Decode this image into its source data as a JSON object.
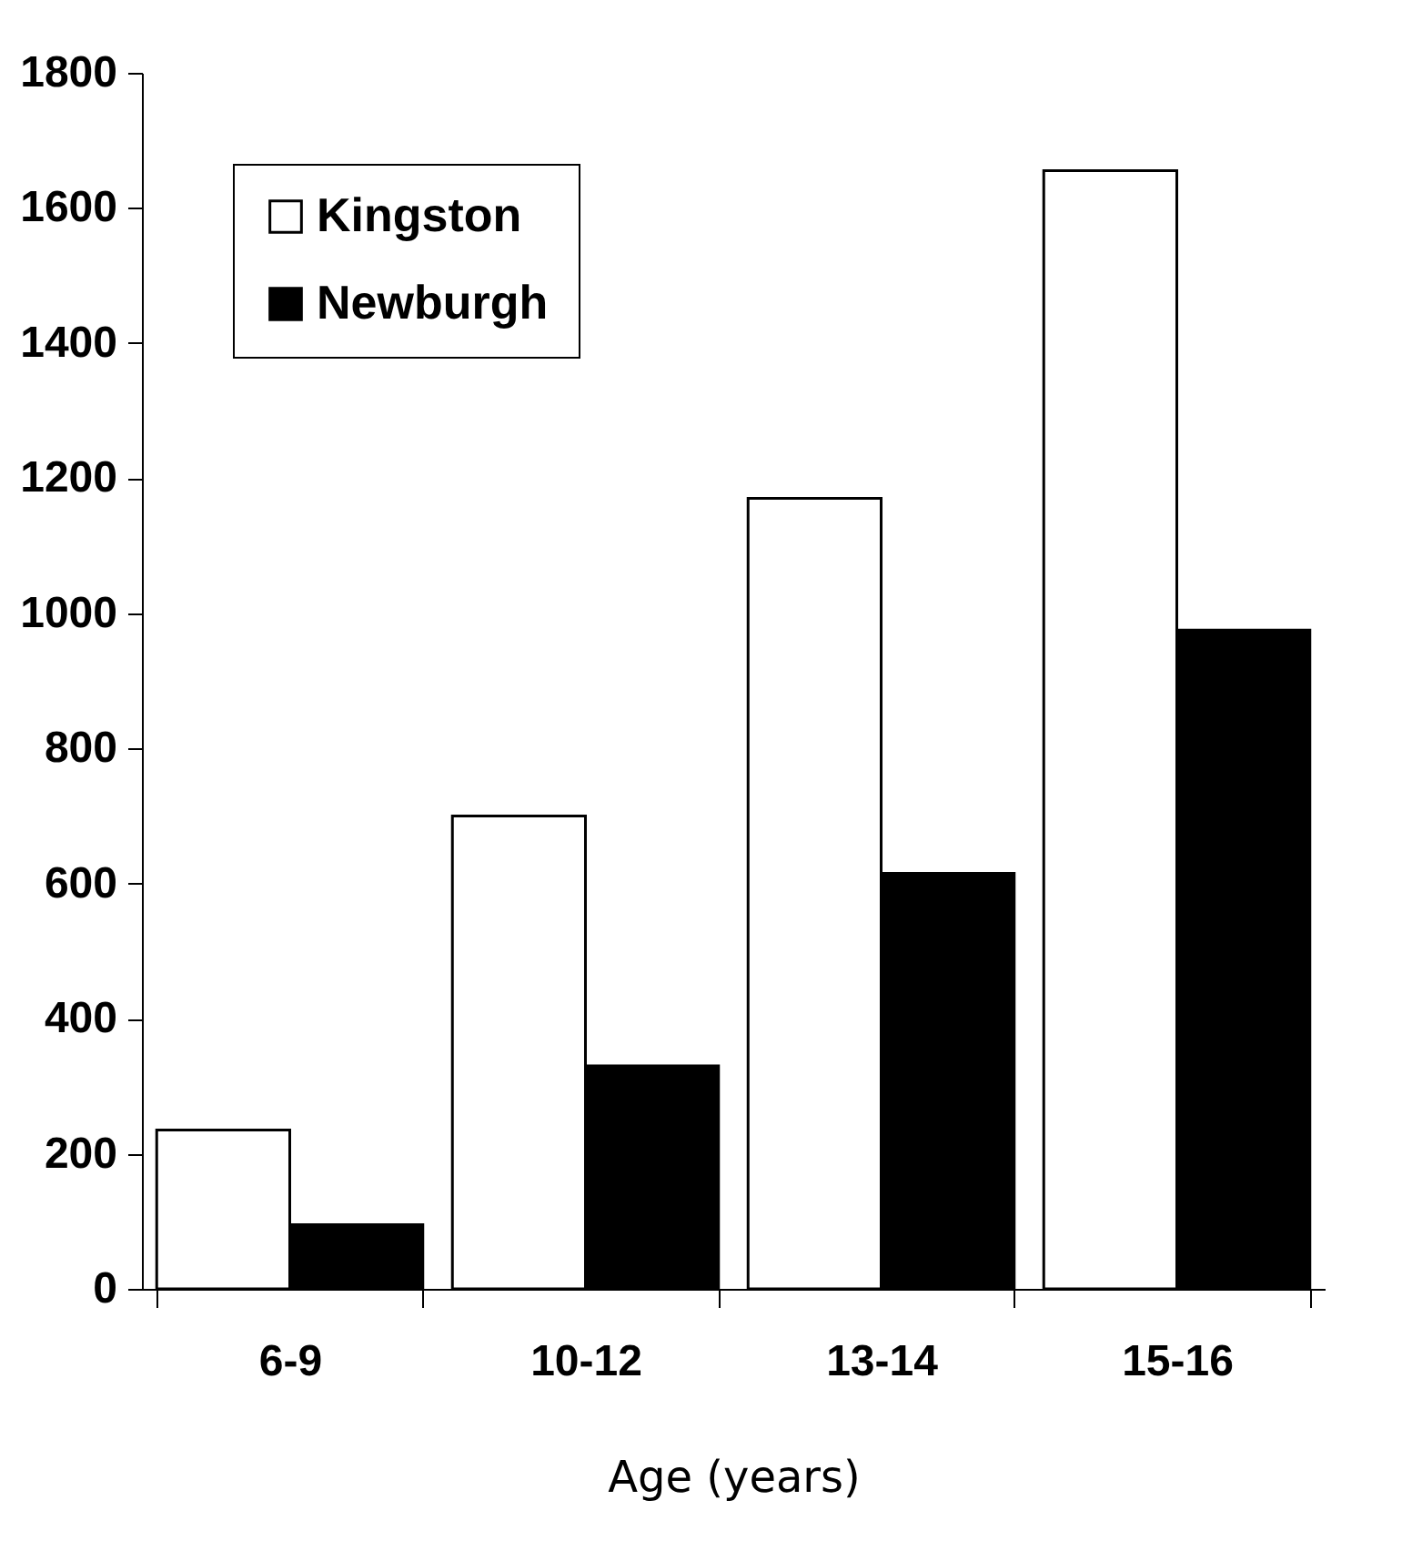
{
  "chart_data": {
    "type": "bar",
    "xlabel": "Age (years)",
    "categories": [
      "6-9",
      "10-12",
      "13-14",
      "15-16"
    ],
    "series": [
      {
        "name": "Kingston",
        "color": "#ffffff",
        "values": [
          235,
          700,
          1170,
          1655
        ]
      },
      {
        "name": "Newburgh",
        "color": "#000000",
        "values": [
          95,
          330,
          615,
          975
        ]
      }
    ],
    "ylim": [
      0,
      1800
    ],
    "yticks": [
      0,
      200,
      400,
      600,
      800,
      1000,
      1200,
      1400,
      1600,
      1800
    ],
    "grid": false,
    "legend": "top left"
  }
}
